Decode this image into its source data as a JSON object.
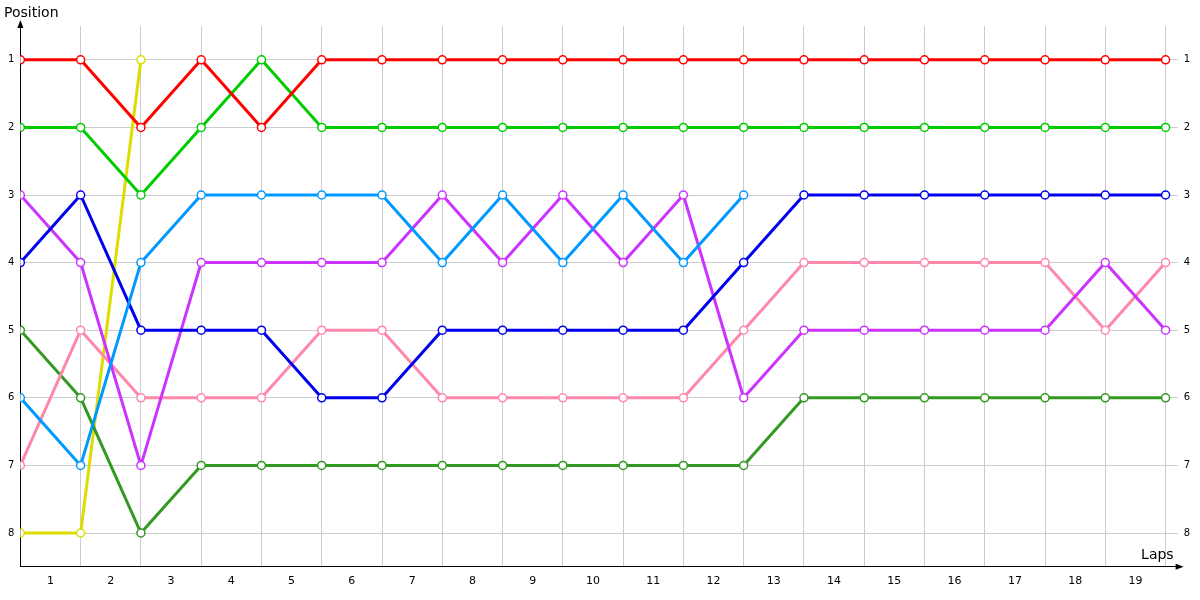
{
  "chart_data": {
    "type": "line",
    "xlabel": "Laps",
    "ylabel": "Position",
    "x": [
      0,
      1,
      2,
      3,
      4,
      5,
      6,
      7,
      8,
      9,
      10,
      11,
      12,
      13,
      14,
      15,
      16,
      17,
      18,
      19
    ],
    "series": [
      {
        "color": "#ff0000",
        "values": [
          1,
          1,
          2,
          1,
          2,
          1,
          1,
          1,
          1,
          1,
          1,
          1,
          1,
          1,
          1,
          1,
          1,
          1,
          1,
          1
        ]
      },
      {
        "color": "#00cc00",
        "values": [
          2,
          2,
          3,
          2,
          1,
          2,
          2,
          2,
          2,
          2,
          2,
          2,
          2,
          2,
          2,
          2,
          2,
          2,
          2,
          2
        ]
      },
      {
        "color": "#0099ff",
        "values": [
          6,
          7,
          4,
          3,
          3,
          3,
          3,
          4,
          3,
          4,
          3,
          4,
          3,
          null,
          null,
          null,
          null,
          null,
          null,
          null
        ]
      },
      {
        "color": "#0000ee",
        "values": [
          4,
          3,
          5,
          5,
          5,
          6,
          6,
          5,
          5,
          5,
          5,
          5,
          4,
          3,
          3,
          3,
          3,
          3,
          3,
          3
        ]
      },
      {
        "color": "#cc33ff",
        "values": [
          3,
          4,
          7,
          4,
          4,
          4,
          4,
          3,
          4,
          3,
          4,
          3,
          6,
          5,
          5,
          5,
          5,
          5,
          4,
          5
        ]
      },
      {
        "color": "#ff88aa",
        "values": [
          7,
          5,
          6,
          6,
          6,
          5,
          5,
          6,
          6,
          6,
          6,
          6,
          5,
          4,
          4,
          4,
          4,
          4,
          5,
          4
        ]
      },
      {
        "color": "#339922",
        "values": [
          5,
          6,
          8,
          7,
          7,
          7,
          7,
          7,
          7,
          7,
          7,
          7,
          7,
          6,
          6,
          6,
          6,
          6,
          6,
          6
        ]
      },
      {
        "color": "#dddd00",
        "values": [
          8,
          8,
          1,
          null,
          null,
          null,
          null,
          null,
          null,
          null,
          null,
          null,
          null,
          null,
          null,
          null,
          null,
          null,
          null,
          null
        ]
      }
    ],
    "xlim": [
      0,
      19.2
    ],
    "xticks": [
      {
        "value": 0,
        "label": null
      },
      {
        "value": 0.5,
        "label": "1"
      },
      {
        "value": 1,
        "label": null
      },
      {
        "value": 1.5,
        "label": "2"
      },
      {
        "value": 2,
        "label": null
      },
      {
        "value": 2.5,
        "label": "3"
      },
      {
        "value": 3,
        "label": null
      },
      {
        "value": 3.5,
        "label": "4"
      },
      {
        "value": 4,
        "label": null
      },
      {
        "value": 4.5,
        "label": "5"
      },
      {
        "value": 5,
        "label": null
      },
      {
        "value": 5.5,
        "label": "6"
      },
      {
        "value": 6,
        "label": null
      },
      {
        "value": 6.5,
        "label": "7"
      },
      {
        "value": 7,
        "label": null
      },
      {
        "value": 7.5,
        "label": "8"
      },
      {
        "value": 8,
        "label": null
      },
      {
        "value": 8.5,
        "label": "9"
      },
      {
        "value": 9,
        "label": null
      },
      {
        "value": 9.5,
        "label": "10"
      },
      {
        "value": 10,
        "label": null
      },
      {
        "value": 10.5,
        "label": "11"
      },
      {
        "value": 11,
        "label": null
      },
      {
        "value": 11.5,
        "label": "12"
      },
      {
        "value": 12,
        "label": null
      },
      {
        "value": 12.5,
        "label": "13"
      },
      {
        "value": 13,
        "label": null
      },
      {
        "value": 13.5,
        "label": "14"
      },
      {
        "value": 14,
        "label": null
      },
      {
        "value": 14.5,
        "label": "15"
      },
      {
        "value": 15,
        "label": null
      },
      {
        "value": 15.5,
        "label": "16"
      },
      {
        "value": 16,
        "label": null
      },
      {
        "value": 16.5,
        "label": "17"
      },
      {
        "value": 17,
        "label": null
      },
      {
        "value": 17.5,
        "label": "18"
      },
      {
        "value": 18,
        "label": null
      },
      {
        "value": 18.5,
        "label": "19"
      },
      {
        "value": 19,
        "label": null
      }
    ],
    "ylim": [
      8.5,
      0.5
    ],
    "yticks": [
      1,
      2,
      3,
      4,
      5,
      6,
      7,
      8
    ],
    "y2lim": [
      8.5,
      0.5
    ],
    "y2ticks": [
      1,
      2,
      3,
      4,
      5,
      6,
      7,
      8
    ],
    "grid": true,
    "legend": false,
    "marker": "circle",
    "line_style": "solid"
  }
}
